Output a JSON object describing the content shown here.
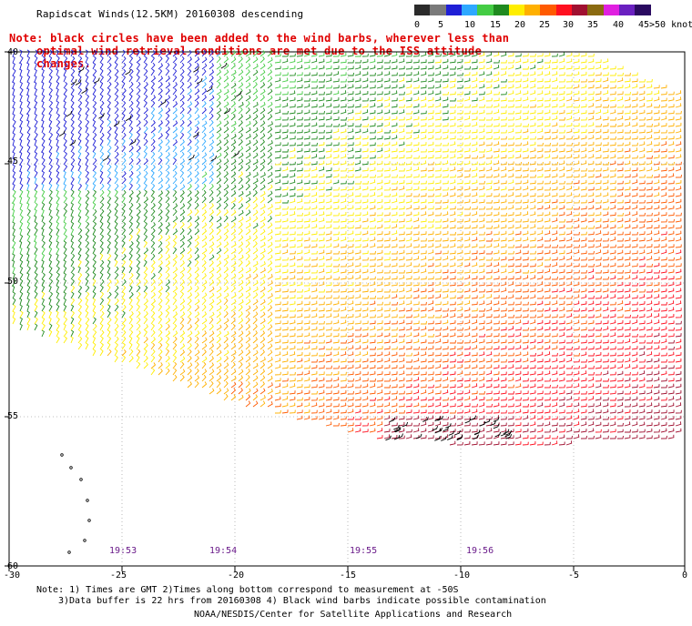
{
  "title": "Rapidscat Winds(12.5KM) 20160308 descending",
  "note": {
    "line1": "Note: black circles have been added to the wind barbs, wherever less than",
    "line2": "optimal wind retrieval conditions are met due to the ISS attitude changes."
  },
  "legend": {
    "labels": [
      "0",
      "5",
      "10",
      "15",
      "20",
      "25",
      "30",
      "35",
      "40",
      "45",
      ">50 knots"
    ],
    "colors": [
      "#2b2b2b",
      "#7a7a7a",
      "#1f1fd6",
      "#2ea8ff",
      "#44cc44",
      "#1f8a1f",
      "#ffee00",
      "#ffb000",
      "#ff5a00",
      "#ff1020",
      "#a01030",
      "#8a6a10",
      "#e020e0",
      "#6a20c0",
      "#2a0a60"
    ]
  },
  "lat_labels": [
    "40",
    "45",
    "50",
    "55",
    "60"
  ],
  "lon_labels": [
    "-30",
    "-25",
    "-20",
    "-15",
    "-10",
    "-5",
    "0"
  ],
  "times": [
    "19:53",
    "19:54",
    "19:55",
    "19:56"
  ],
  "footer": {
    "line1": "Note: 1) Times are GMT 2)Times along bottom correspond to measurement at -50S",
    "line2": "3)Data buffer is 22 hrs from 20160308 4) Black wind barbs indicate possible contamination",
    "line3": "NOAA/NESDIS/Center for Satellite Applications and Research"
  }
}
